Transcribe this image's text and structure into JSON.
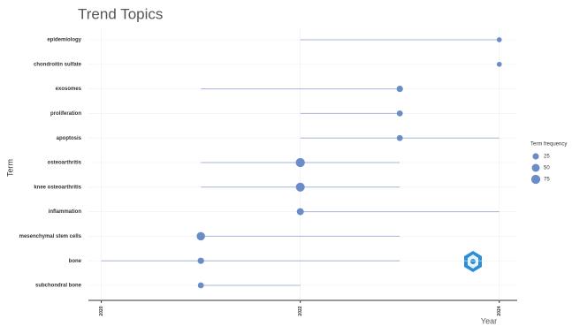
{
  "chart_data": {
    "type": "trend_topics",
    "title": "Trend Topics",
    "x_label": "Year",
    "y_label": "Term",
    "categories": [
      "epidemiology",
      "chondroitin sulfate",
      "exosomes",
      "proliferation",
      "apoptosis",
      "osteoarthritis",
      "knee osteoarthritis",
      "inflammation",
      "mesenchymal stem cells",
      "bone",
      "subchondral bone"
    ],
    "year": [
      2024,
      2024,
      2023,
      2023,
      2023,
      2022,
      2022,
      2022,
      2021,
      2021,
      2021
    ],
    "start": [
      2022,
      2024,
      2021,
      2022,
      2022,
      2021,
      2021,
      2022,
      2021,
      2020,
      2021
    ],
    "end": [
      2024,
      2024,
      2023,
      2023,
      2024,
      2023,
      2023,
      2024,
      2023,
      2023,
      2022
    ],
    "freq": [
      10,
      10,
      25,
      20,
      20,
      75,
      70,
      35,
      60,
      25,
      20
    ],
    "xlim": [
      2019.87,
      2024.18
    ],
    "xticks": [
      2020,
      2022,
      2024
    ],
    "grid": true,
    "point_color": "#6a8cc7",
    "line_color": "#a8b4de",
    "legend": {
      "title": "Term frequency",
      "values": [
        25,
        50,
        75
      ]
    }
  }
}
